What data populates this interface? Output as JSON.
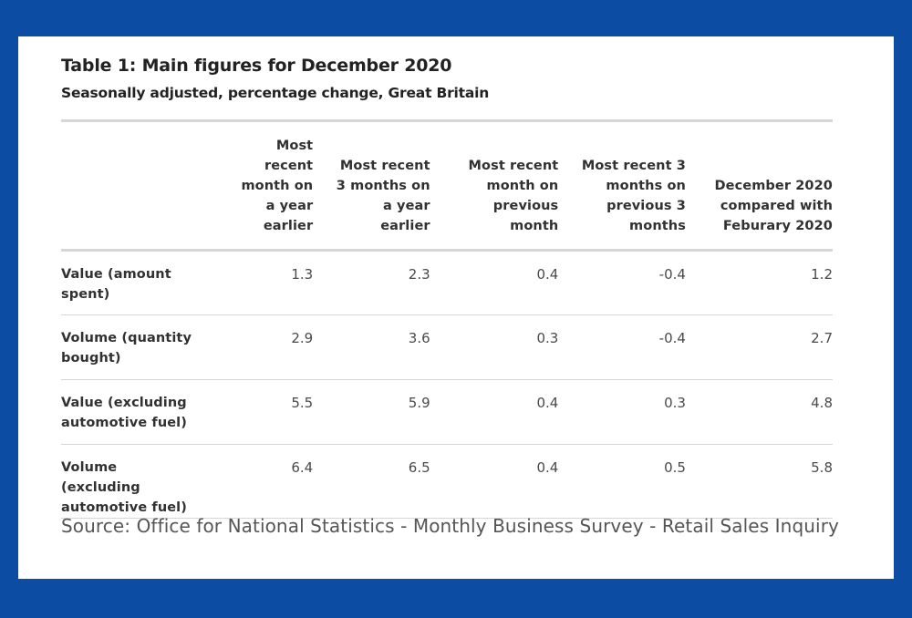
{
  "title": "Table 1: Main figures for December 2020",
  "subtitle": "Seasonally adjusted, percentage change, Great Britain",
  "table": {
    "columns": [
      "",
      "Most recent month on a year earlier",
      "Most recent 3 months on a year earlier",
      "Most recent month on previous month",
      "Most recent 3 months on previous 3 months",
      "December 2020 compared with Feburary 2020"
    ],
    "column_lines": [
      [],
      [
        "Most",
        "recent",
        "month on",
        "a year",
        "earlier"
      ],
      [
        "Most recent",
        "3 months on",
        "a year",
        "earlier"
      ],
      [
        "Most recent",
        "month on",
        "previous",
        "month"
      ],
      [
        "Most recent 3",
        "months on",
        "previous 3",
        "months"
      ],
      [
        "December 2020",
        "compared with",
        "Feburary 2020"
      ]
    ],
    "rows": [
      {
        "label_lines": [
          "Value (amount",
          "spent)"
        ],
        "values": [
          "1.3",
          "2.3",
          "0.4",
          "-0.4",
          "1.2"
        ]
      },
      {
        "label_lines": [
          "Volume (quantity",
          "bought)"
        ],
        "values": [
          "2.9",
          "3.6",
          "0.3",
          "-0.4",
          "2.7"
        ]
      },
      {
        "label_lines": [
          "Value (excluding",
          "automotive fuel)"
        ],
        "values": [
          "5.5",
          "5.9",
          "0.4",
          "0.3",
          "4.8"
        ]
      },
      {
        "label_lines": [
          "Volume (excluding",
          "automotive fuel)"
        ],
        "values": [
          "6.4",
          "6.5",
          "0.4",
          "0.5",
          "5.8"
        ]
      }
    ]
  },
  "source": "Source: Office for National Statistics - Monthly Business Survey - Retail Sales Inquiry",
  "colors": {
    "background": "#0c4da3",
    "card": "#ffffff",
    "rule": "#d6d6d6"
  }
}
